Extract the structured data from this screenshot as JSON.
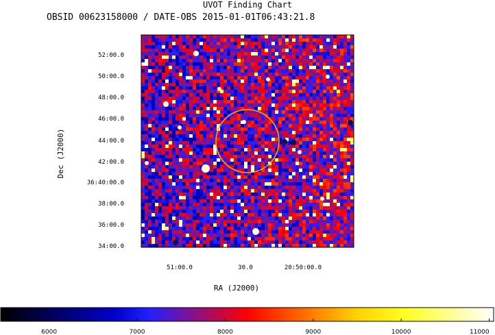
{
  "header": {
    "title": "UVOT Finding Chart",
    "subtitle": "OBSID 00623158000 / DATE-OBS 2015-01-01T06:43:21.8"
  },
  "chart_data": {
    "type": "heatmap",
    "title": "UVOT Finding Chart",
    "subtitle": "OBSID 00623158000 / DATE-OBS 2015-01-01T06:43:21.8",
    "xlabel": "RA (J2000)",
    "ylabel": "Dec (J2000)",
    "x_ticks": [
      "51:00.0",
      "30.0",
      "20:50:00.0"
    ],
    "y_ticks": [
      "52:00.0",
      "50:00.0",
      "48:00.0",
      "46:00.0",
      "44:00.0",
      "42:00.0",
      "36:40:00.0",
      "38:00.0",
      "36:00.0",
      "34:00.0"
    ],
    "colorbar": {
      "ticks": [
        "6000",
        "7000",
        "8000",
        "9000",
        "10000",
        "11000"
      ],
      "range": [
        5450,
        11050
      ],
      "colormap": "black-blue-red-yellow-white"
    },
    "colors": {
      "low": "#000000",
      "blue": "#0000ff",
      "red": "#ff0000",
      "yellow": "#ffff00",
      "high": "#ffffff",
      "circle": "#e8b020"
    },
    "annotations": [
      "source-circle"
    ]
  }
}
